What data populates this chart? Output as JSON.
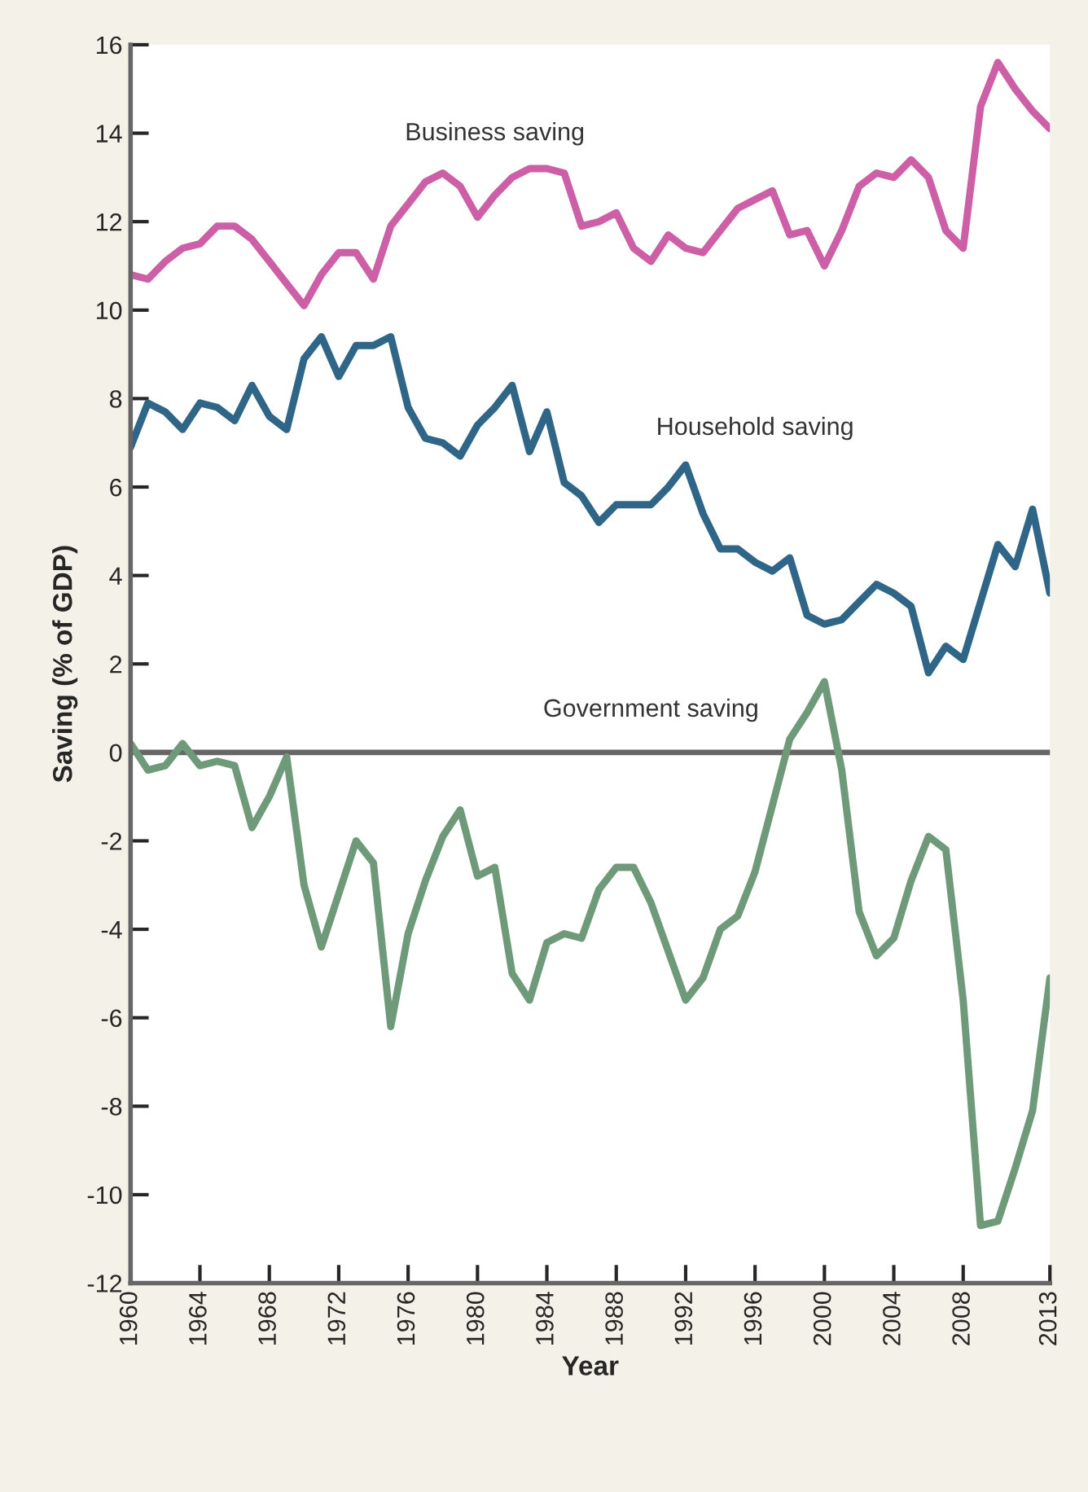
{
  "chart_data": {
    "type": "line",
    "xlabel": "Year",
    "ylabel": "Saving (% of GDP)",
    "x": [
      1960,
      1961,
      1962,
      1963,
      1964,
      1965,
      1966,
      1967,
      1968,
      1969,
      1970,
      1971,
      1972,
      1973,
      1974,
      1975,
      1976,
      1977,
      1978,
      1979,
      1980,
      1981,
      1982,
      1983,
      1984,
      1985,
      1986,
      1987,
      1988,
      1989,
      1990,
      1991,
      1992,
      1993,
      1994,
      1995,
      1996,
      1997,
      1998,
      1999,
      2000,
      2001,
      2002,
      2003,
      2004,
      2005,
      2006,
      2007,
      2008,
      2009,
      2010,
      2011,
      2012,
      2013
    ],
    "series": [
      {
        "name": "Business saving",
        "color": "#cc5fa6",
        "values": [
          10.8,
          10.7,
          11.1,
          11.4,
          11.5,
          11.9,
          11.9,
          11.6,
          11.1,
          10.6,
          10.1,
          10.8,
          11.3,
          11.3,
          10.7,
          11.9,
          12.4,
          12.9,
          13.1,
          12.8,
          12.1,
          12.6,
          13.0,
          13.2,
          13.2,
          13.1,
          11.9,
          12.0,
          12.2,
          11.4,
          11.1,
          11.7,
          11.4,
          11.3,
          11.8,
          12.3,
          12.5,
          12.7,
          11.7,
          11.8,
          11.0,
          11.8,
          12.8,
          13.1,
          13.0,
          13.4,
          13.0,
          11.8,
          11.4,
          14.6,
          15.6,
          15.0,
          14.5,
          14.1
        ]
      },
      {
        "name": "Household saving",
        "color": "#2f6688",
        "values": [
          6.9,
          7.9,
          7.7,
          7.3,
          7.9,
          7.8,
          7.5,
          8.3,
          7.6,
          7.3,
          8.9,
          9.4,
          8.5,
          9.2,
          9.2,
          9.4,
          7.8,
          7.1,
          7.0,
          6.7,
          7.4,
          7.8,
          8.3,
          6.8,
          7.7,
          6.1,
          5.8,
          5.2,
          5.6,
          5.6,
          5.6,
          6.0,
          6.5,
          5.4,
          4.6,
          4.6,
          4.3,
          4.1,
          4.4,
          3.1,
          2.9,
          3.0,
          3.4,
          3.8,
          3.6,
          3.3,
          1.8,
          2.4,
          2.1,
          3.4,
          4.7,
          4.2,
          5.5,
          3.6
        ]
      },
      {
        "name": "Government saving",
        "color": "#6f9a7a",
        "values": [
          0.2,
          -0.4,
          -0.3,
          0.2,
          -0.3,
          -0.2,
          -0.3,
          -1.7,
          -1.0,
          -0.1,
          -3.0,
          -4.4,
          -3.2,
          -2.0,
          -2.5,
          -6.2,
          -4.1,
          -2.9,
          -1.9,
          -1.3,
          -2.8,
          -2.6,
          -5.0,
          -5.6,
          -4.3,
          -4.1,
          -4.2,
          -3.1,
          -2.6,
          -2.6,
          -3.4,
          -4.5,
          -5.6,
          -5.1,
          -4.0,
          -3.7,
          -2.7,
          -1.2,
          0.3,
          0.9,
          1.6,
          -0.4,
          -3.6,
          -4.6,
          -4.2,
          -2.9,
          -1.9,
          -2.2,
          -5.6,
          -10.7,
          -10.6,
          -9.4,
          -8.1,
          -5.1
        ]
      }
    ],
    "xlim": [
      1960,
      2013
    ],
    "xticks": [
      1960,
      1964,
      1968,
      1972,
      1976,
      1980,
      1984,
      1988,
      1992,
      1996,
      2000,
      2004,
      2008,
      2013
    ],
    "ylim": [
      -12,
      16
    ],
    "yticks": [
      -12,
      -10,
      -8,
      -6,
      -4,
      -2,
      0,
      2,
      4,
      6,
      8,
      10,
      12,
      14,
      16
    ],
    "ref_lines": [
      {
        "axis": "y",
        "value": 0,
        "color": "#666666"
      }
    ],
    "grid": false,
    "legend": false,
    "marker": "none",
    "line_style": "solid"
  }
}
